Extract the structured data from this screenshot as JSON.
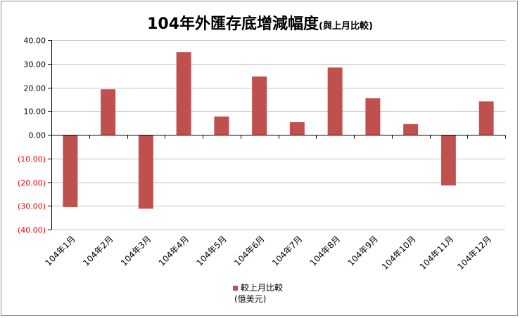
{
  "chart_data": {
    "type": "bar",
    "title": "104年外匯存底增減幅度",
    "title_suffix": "(與上月比較)",
    "categories": [
      "104年1月",
      "104年2月",
      "104年3月",
      "104年4月",
      "104年5月",
      "104年6月",
      "104年7月",
      "104年8月",
      "104年9月",
      "104年10月",
      "104年11月",
      "104年12月"
    ],
    "series": [
      {
        "name": "較上月比較",
        "values": [
          -30.5,
          19.2,
          -31.2,
          34.9,
          7.7,
          24.6,
          5.3,
          28.4,
          15.4,
          4.5,
          -21.4,
          14.1
        ]
      }
    ],
    "legend_lines": [
      "較上月比較",
      "(億美元)"
    ],
    "y_ticks": [
      "40.00",
      "30.00",
      "20.00",
      "10.00",
      "0.00",
      "(10.00)",
      "(20.00)",
      "(30.00)",
      "(40.00)"
    ],
    "ylim": [
      -40,
      40
    ],
    "grid": true,
    "legend_position": "bottom",
    "colors": {
      "bar": "#c0504d",
      "positive_label": "#000000",
      "negative_label": "#ff0000",
      "grid": "#bfbfbf",
      "axis": "#000000"
    }
  }
}
